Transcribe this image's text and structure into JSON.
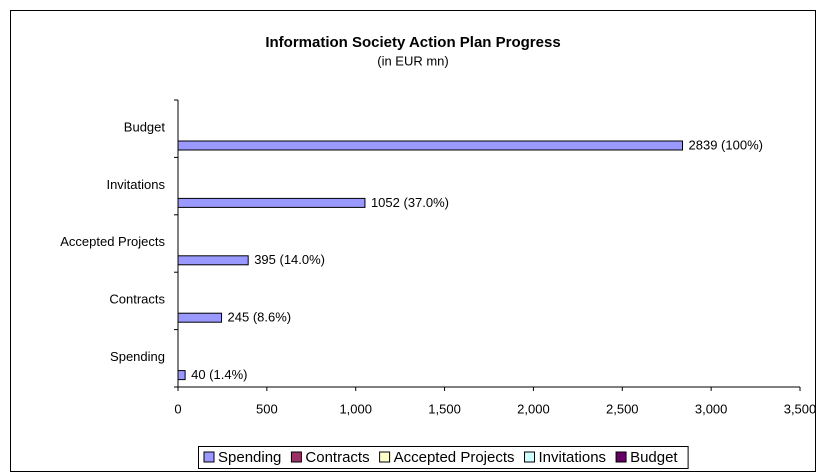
{
  "chart_data": {
    "type": "bar",
    "orientation": "horizontal",
    "title": "Information Society Action Plan Progress",
    "subtitle": "(in EUR mn)",
    "categories": [
      "Budget",
      "Invitations",
      "Accepted Projects",
      "Contracts",
      "Spending"
    ],
    "values": [
      2839,
      1052,
      395,
      245,
      40
    ],
    "value_labels": [
      "2839 (100%)",
      "1052 (37.0%)",
      "395 (14.0%)",
      "245 (8.6%)",
      "40 (1.4%)"
    ],
    "color": "#9999ff",
    "xlim": [
      0,
      3500
    ],
    "xticks": [
      0,
      500,
      {
        "value": 1000,
        "label": "1,000"
      },
      {
        "value": 1500,
        "label": "1,500"
      },
      {
        "value": 2000,
        "label": "2,000"
      },
      {
        "value": 2500,
        "label": "2,500"
      },
      {
        "value": 3000,
        "label": "3,000"
      },
      {
        "value": 3500,
        "label": "3,500"
      }
    ],
    "legend": [
      {
        "name": "Spending",
        "color": "#9999ff"
      },
      {
        "name": "Contracts",
        "color": "#993366"
      },
      {
        "name": "Accepted Projects",
        "color": "#ffffcc"
      },
      {
        "name": "Invitations",
        "color": "#ccffff"
      },
      {
        "name": "Budget",
        "color": "#660066"
      }
    ]
  }
}
